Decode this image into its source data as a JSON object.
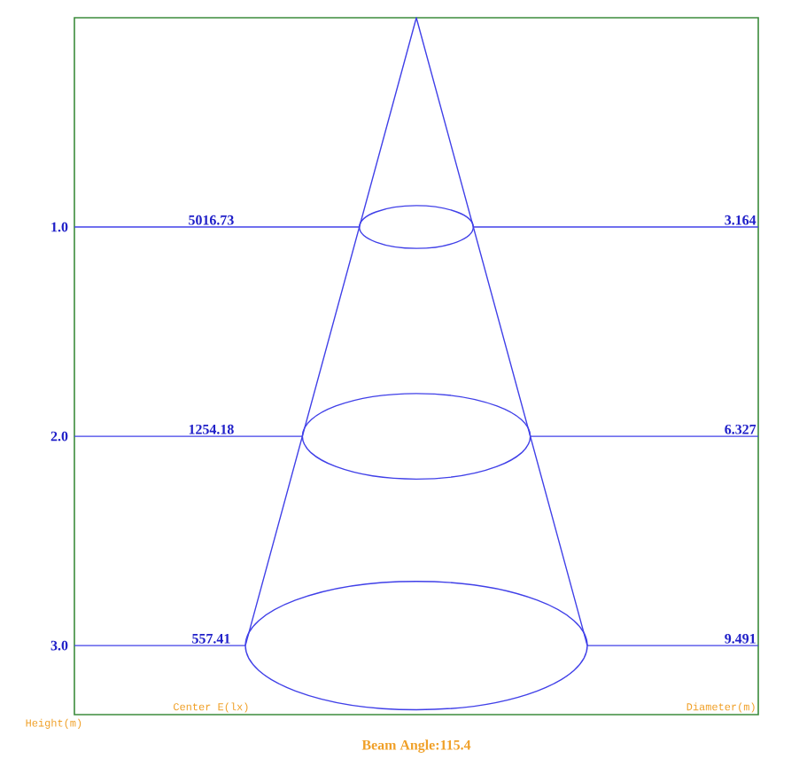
{
  "chart_data": {
    "type": "other",
    "title": "Beam Angle:115.4",
    "ylabel": "Height(m)",
    "categories": [
      "1.0",
      "2.0",
      "3.0"
    ],
    "color": "#4040e8",
    "data_labels": true,
    "series": [
      {
        "values": [
          5016.73,
          1254.18,
          557.41
        ]
      },
      {
        "values": [
          3.164,
          6.327,
          9.491
        ]
      }
    ],
    "annotations": [
      "Center E(lx)",
      "Diameter(m)"
    ]
  }
}
